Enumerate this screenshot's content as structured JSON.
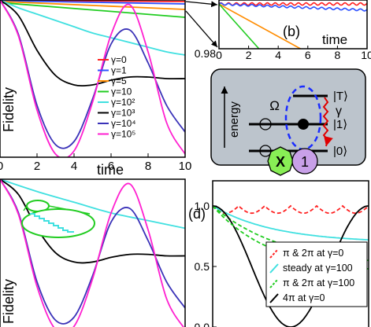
{
  "chart_data": [
    {
      "panel": "a",
      "type": "line",
      "xlabel": "time",
      "ylabel": "Fidelity",
      "xlim": [
        0,
        10
      ],
      "ylim": [
        0.0,
        1.0
      ],
      "x_ticks": [
        "0",
        "2",
        "4",
        "6",
        "8",
        "10"
      ],
      "grid": false,
      "legend_position": "center-right",
      "series": [
        {
          "name": "γ=0",
          "color": "#ff2020",
          "x": [
            0,
            10
          ],
          "y": [
            1.0,
            1.0
          ]
        },
        {
          "name": "γ=1",
          "color": "#2c50ff",
          "x": [
            0,
            10
          ],
          "y": [
            1.0,
            0.99
          ]
        },
        {
          "name": "γ=5",
          "color": "#ff8c00",
          "x": [
            0,
            10
          ],
          "y": [
            1.0,
            0.95
          ]
        },
        {
          "name": "γ=10",
          "color": "#20cc20",
          "x": [
            0,
            10
          ],
          "y": [
            1.0,
            0.9
          ]
        },
        {
          "name": "γ=10²",
          "color": "#40e0e0",
          "x": [
            0,
            1,
            2,
            3,
            4,
            5,
            6,
            7,
            8,
            9,
            10
          ],
          "y": [
            1.0,
            0.95,
            0.91,
            0.87,
            0.83,
            0.79,
            0.76,
            0.73,
            0.7,
            0.67,
            0.65
          ]
        },
        {
          "name": "γ=10³",
          "color": "#000000",
          "x": [
            0,
            1,
            2,
            3,
            4,
            5,
            6,
            7,
            8,
            9,
            10
          ],
          "y": [
            1.0,
            0.9,
            0.68,
            0.52,
            0.46,
            0.46,
            0.49,
            0.51,
            0.51,
            0.5,
            0.5
          ]
        },
        {
          "name": "γ=10⁴",
          "color": "#3a32b8",
          "x": [
            0,
            1,
            2,
            3,
            4,
            5,
            6,
            7,
            8,
            9,
            10
          ],
          "y": [
            1.0,
            0.78,
            0.33,
            0.08,
            0.1,
            0.37,
            0.72,
            0.81,
            0.6,
            0.33,
            0.16
          ]
        },
        {
          "name": "γ=10⁵",
          "color": "#ff20d0",
          "x": [
            0,
            1,
            2,
            3,
            4,
            5,
            6,
            7,
            8,
            9,
            10
          ],
          "y": [
            1.0,
            0.77,
            0.3,
            0.02,
            0.04,
            0.35,
            0.78,
            0.97,
            0.67,
            0.22,
            0.02
          ]
        }
      ]
    },
    {
      "panel": "b",
      "type": "line",
      "label": "(b)",
      "xlabel": "time",
      "xlim": [
        0,
        10
      ],
      "ylim": [
        0.98,
        1.0
      ],
      "x_ticks": [
        "0",
        "2",
        "4",
        "6",
        "8",
        "10"
      ],
      "y_ticks": [
        "0.98"
      ],
      "series": [
        {
          "name": "γ=0",
          "color": "#ff2020",
          "x": [
            0,
            10
          ],
          "y": [
            0.999,
            0.999
          ]
        },
        {
          "name": "γ=1",
          "color": "#2c50ff",
          "x": [
            0,
            10
          ],
          "y": [
            0.999,
            0.9965
          ]
        },
        {
          "name": "γ=5",
          "color": "#ff8c00",
          "x": [
            0,
            5.5
          ],
          "y": [
            0.999,
            0.98
          ]
        },
        {
          "name": "γ=10",
          "color": "#20cc20",
          "x": [
            0,
            2.7
          ],
          "y": [
            0.999,
            0.98
          ]
        }
      ]
    },
    {
      "panel": "c",
      "type": "line",
      "ylabel": "Fidelity",
      "xlim": [
        0,
        10
      ],
      "ylim": [
        0.0,
        1.0
      ],
      "series": [
        {
          "color": "#40e0e0",
          "x": [
            0,
            2,
            4,
            6,
            8,
            10
          ],
          "y": [
            1.0,
            0.92,
            0.85,
            0.78,
            0.73,
            0.68
          ]
        },
        {
          "color": "#000000",
          "x": [
            0,
            1,
            2,
            3,
            4,
            5,
            6,
            7,
            8,
            9,
            10
          ],
          "y": [
            1.0,
            0.9,
            0.68,
            0.52,
            0.46,
            0.46,
            0.49,
            0.51,
            0.51,
            0.5,
            0.5
          ]
        },
        {
          "color": "#3a32b8",
          "x": [
            0,
            1,
            2,
            3,
            4,
            5,
            6,
            7,
            8,
            9,
            10
          ],
          "y": [
            1.0,
            0.78,
            0.33,
            0.08,
            0.1,
            0.37,
            0.72,
            0.81,
            0.6,
            0.33,
            0.16
          ]
        },
        {
          "color": "#ff20d0",
          "x": [
            0,
            1,
            2,
            3,
            4,
            5,
            6,
            7,
            8,
            9,
            10
          ],
          "y": [
            1.0,
            0.77,
            0.3,
            0.02,
            0.04,
            0.35,
            0.78,
            0.97,
            0.67,
            0.22,
            0.02
          ]
        }
      ]
    },
    {
      "panel": "d",
      "type": "line",
      "label": "(d)",
      "ylim": [
        0.0,
        1.0
      ],
      "y_ticks": [
        "0.0",
        "0.5",
        "1.0"
      ],
      "legend_position": "bottom-right",
      "series": [
        {
          "name": "π & 2π at γ=0",
          "color": "#ff2020",
          "style": "dashed",
          "y": [
            1.0,
            1.0
          ]
        },
        {
          "name": "steady at γ=100",
          "color": "#40e0e0",
          "style": "solid",
          "y": [
            1.0,
            0.85,
            0.72
          ]
        },
        {
          "name": "π & 2π at γ=100",
          "color": "#20cc20",
          "style": "dashed",
          "y": [
            1.0,
            0.72,
            0.55
          ]
        },
        {
          "name": "4π at γ=0",
          "color": "#000000",
          "style": "solid",
          "y": [
            1.0,
            0.5,
            0.0,
            0.5,
            1.0
          ]
        }
      ]
    }
  ],
  "diagram": {
    "energy_label": "energy",
    "omega_label": "Ω",
    "gamma_label": "γ",
    "level_T": "|T⟩",
    "level_1": "|1⟩",
    "level_0": "|0⟩",
    "gate_x": "X",
    "gate_1": "1"
  }
}
